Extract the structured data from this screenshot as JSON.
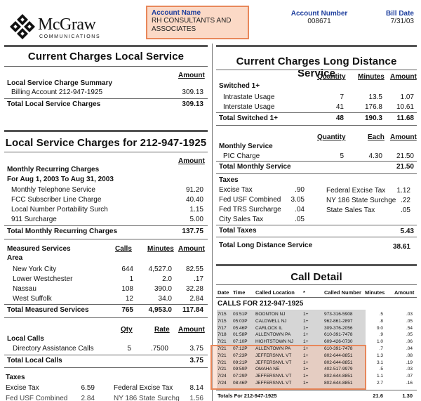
{
  "logo": {
    "brand": "McGraw",
    "sub": "COMMUNICATIONS"
  },
  "account": {
    "name_label": "Account Name",
    "name_value": "RH CONSULTANTS AND ASSOCIATES",
    "number_label": "Account Number",
    "number_value": "008671",
    "bill_date_label": "Bill Date",
    "bill_date_value": "7/31/03"
  },
  "local_service": {
    "title": "Current Charges Local Service",
    "amount_header": "Amount",
    "summary_heading": "Local Service Charge Summary",
    "billing_label": "Billing Account 212-947-1925",
    "billing_amount": "309.13",
    "total_label": "Total Local Service Charges",
    "total_amount": "309.13"
  },
  "local_charges": {
    "title": "Local Service Charges for 212-947-1925",
    "amount_header": "Amount",
    "recurring_heading": "Monthly Recurring Charges",
    "period": "For Aug 1, 2003  To Aug 31, 2003",
    "items": [
      {
        "label": "Monthly Telephone Service",
        "amount": "91.20"
      },
      {
        "label": "FCC Subscriber Line Charge",
        "amount": "40.40"
      },
      {
        "label": "Local Number Portability Surch",
        "amount": "1.15"
      },
      {
        "label": "911 Surcharge",
        "amount": "5.00"
      }
    ],
    "recurring_total_label": "Total Monthly Recurring Charges",
    "recurring_total": "137.75",
    "measured": {
      "heading": "Measured Services",
      "area_label": "Area",
      "cols": [
        "Calls",
        "Minutes",
        "Amount"
      ],
      "rows": [
        {
          "area": "New York City",
          "calls": "644",
          "minutes": "4,527.0",
          "amount": "82.55"
        },
        {
          "area": "Lower Westchester",
          "calls": "1",
          "minutes": "2.0",
          "amount": ".17"
        },
        {
          "area": "Nassau",
          "calls": "108",
          "minutes": "390.0",
          "amount": "32.28"
        },
        {
          "area": "West Suffolk",
          "calls": "12",
          "minutes": "34.0",
          "amount": "2.84"
        }
      ],
      "total_label": "Total Measured Services",
      "total_calls": "765",
      "total_minutes": "4,953.0",
      "total_amount": "117.84"
    },
    "local_calls": {
      "heading": "Local Calls",
      "cols": [
        "Qty",
        "Rate",
        "Amount"
      ],
      "item": {
        "label": "Directory Assistance Calls",
        "qty": "5",
        "rate": ".7500",
        "amount": "3.75"
      },
      "total_label": "Total Local Calls",
      "total_amount": "3.75"
    },
    "taxes": {
      "heading": "Taxes",
      "excise_label": "Excise Tax",
      "excise_amount": "6.59",
      "federal_label": "Federal Excise Tax",
      "federal_amount": "8.14",
      "partial_left": "Fed USF Combined",
      "partial_left_amount": "2.84",
      "partial_right": "NY 186 State Surchg",
      "partial_right_amount": "1.56"
    }
  },
  "long_distance": {
    "title": "Current Charges Long Distance Service",
    "cols": [
      "Quantity",
      "Minutes",
      "Amount"
    ],
    "switched_heading": "Switched 1+",
    "rows": [
      {
        "label": "Intrastate Usage",
        "qty": "7",
        "minutes": "13.5",
        "amount": "1.07"
      },
      {
        "label": "Interstate Usage",
        "qty": "41",
        "minutes": "176.8",
        "amount": "10.61"
      }
    ],
    "switched_total_label": "Total Switched 1+",
    "switched_total_qty": "48",
    "switched_total_minutes": "190.3",
    "switched_total_amount": "11.68",
    "monthly_cols": [
      "Quantity",
      "Each",
      "Amount"
    ],
    "monthly_heading": "Monthly Service",
    "pic_label": "PIC Charge",
    "pic_qty": "5",
    "pic_each": "4.30",
    "pic_amount": "21.50",
    "monthly_total_label": "Total Monthly Service",
    "monthly_total_amount": "21.50",
    "taxes_heading": "Taxes",
    "taxes_left": [
      {
        "label": "Excise Tax",
        "amount": ".90"
      },
      {
        "label": "Fed USF Combined",
        "amount": "3.05"
      },
      {
        "label": "Fed TRS Surcharge",
        "amount": ".04"
      },
      {
        "label": "City Sales Tax",
        "amount": ".05"
      }
    ],
    "taxes_right": [
      {
        "label": "Federal Excise Tax",
        "amount": "1.12"
      },
      {
        "label": "NY 186 State Surchge",
        "amount": ".22"
      },
      {
        "label": "State Sales Tax",
        "amount": ".05"
      }
    ],
    "taxes_total_label": "Total Taxes",
    "taxes_total_amount": "5.43",
    "grand_total_label": "Total Long Distance Service",
    "grand_total_amount": "38.61"
  },
  "call_detail": {
    "title": "Call Detail",
    "cols": [
      "Date",
      "Time",
      "Called Location",
      "*",
      "Called Number",
      "Minutes",
      "Amount"
    ],
    "calls_for": "CALLS FOR 212-947-1925",
    "rows": [
      {
        "date": "7/15",
        "time": "03:51P",
        "loc": "BOONTON NJ",
        "star": "1+",
        "num": "973-316-5908",
        "min": ".5",
        "amt": ".03"
      },
      {
        "date": "7/15",
        "time": "05:03P",
        "loc": "CALDWELL NJ",
        "star": "1+",
        "num": "962-861-2897",
        "min": ".8",
        "amt": ".05"
      },
      {
        "date": "7/17",
        "time": "05:46P",
        "loc": "CARLOCK IL",
        "star": "1+",
        "num": "309-376-2056",
        "min": "9.0",
        "amt": ".54"
      },
      {
        "date": "7/18",
        "time": "01:58P",
        "loc": "ALLENTOWN PA",
        "star": "1+",
        "num": "610-391-7478",
        "min": ".9",
        "amt": ".05"
      },
      {
        "date": "7/21",
        "time": "07:10P",
        "loc": "HIGHTSTOWN NJ",
        "star": "1+",
        "num": "609-426-0730",
        "min": "1.0",
        "amt": ".06"
      },
      {
        "date": "7/21",
        "time": "07:12P",
        "loc": "ALLENTOWN PA",
        "star": "1+",
        "num": "610-391-7478",
        "min": ".7",
        "amt": ".04"
      },
      {
        "date": "7/21",
        "time": "07:23P",
        "loc": "JEFFERSNVL VT",
        "star": "1+",
        "num": "802-644-8851",
        "min": "1.3",
        "amt": ".08"
      },
      {
        "date": "7/21",
        "time": "09:21P",
        "loc": "JEFFERSNVL VT",
        "star": "1+",
        "num": "802-644-8851",
        "min": "3.1",
        "amt": ".19"
      },
      {
        "date": "7/21",
        "time": "09:59P",
        "loc": "OMAHA NE",
        "star": "1+",
        "num": "402-517-9979",
        "min": ".5",
        "amt": ".03"
      },
      {
        "date": "7/24",
        "time": "07:29P",
        "loc": "JEFFERSNVL VT",
        "star": "1+",
        "num": "802-644-8851",
        "min": "1.1",
        "amt": ".07"
      },
      {
        "date": "7/24",
        "time": "08:46P",
        "loc": "JEFFERSNVL VT",
        "star": "1+",
        "num": "802-644-8851",
        "min": "2.7",
        "amt": ".16"
      }
    ],
    "total_label": "Totals For 212-947-1925",
    "total_minutes": "21.6",
    "total_amount": "1.30"
  },
  "colors": {
    "accent": "#1e3f9e",
    "highlight_border": "#e8875a",
    "highlight_fill": "#fbd9c6"
  }
}
